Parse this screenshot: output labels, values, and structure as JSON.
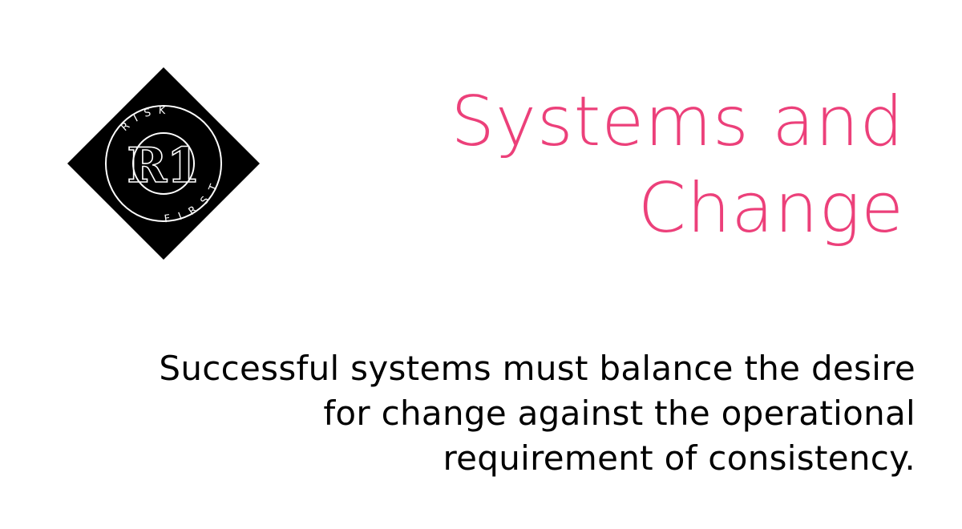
{
  "colors": {
    "accent": "#ec407a",
    "text": "#000000",
    "logo_bg": "#000000",
    "logo_fg": "#ffffff"
  },
  "logo": {
    "icon": "risk-first-logo",
    "monogram": "R1",
    "ring_text_top": "RISK",
    "ring_text_bottom": "FIRST"
  },
  "title": {
    "lines": [
      "Systems and",
      "Change"
    ]
  },
  "subtitle": {
    "lines": [
      "Successful systems must balance the desire",
      "for change against the operational",
      "requirement of consistency."
    ]
  }
}
